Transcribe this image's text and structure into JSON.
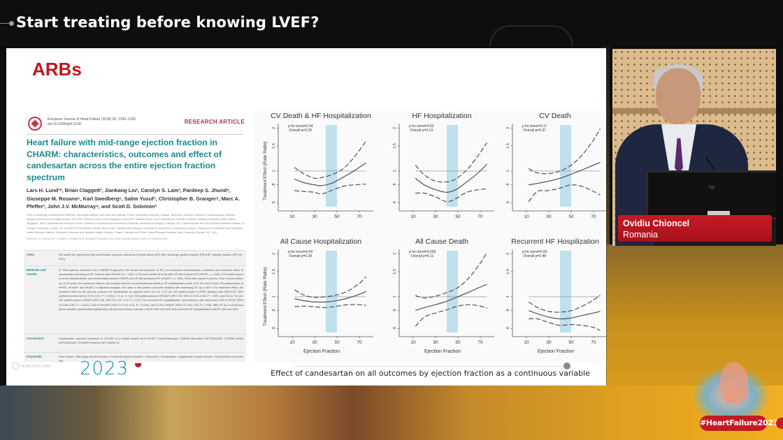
{
  "session": {
    "title": "Start treating before knowing LVEF?"
  },
  "slide": {
    "heading": "ARBs",
    "paper": {
      "journal": "European Journal of Heart Failure (2018) 20, 1230–1239",
      "doi": "doi:10.1002/ejhf.1149",
      "type": "RESEARCH ARTICLE",
      "title": "Heart failure with mid-range ejection fraction in CHARM: characteristics, outcomes and effect of candesartan across the entire ejection fraction spectrum",
      "authors": "Lars H. Lund¹*, Brian Claggett², Jiankang Liu², Carolyn S. Lam³, Pardeep S. Jhund⁴, Giuseppe M. Rosano⁵, Karl Swedberg⁶, Salim Yusuf⁷, Christopher B. Granger⁸, Marc A. Pfeffer², John J.V. McMurray⁴, and Scott D. Solomon²",
      "affiliations": "¹Unit of Cardiology, Department of Medicine, Karolinska Institutet, and Heart and Vascular Theme, Karolinska University Hospital, Stockholm, Sweden; ²Division of Cardiovascular Medicine, Brigham and Women's Hospital, Boston, MA, USA; ³National Heart Centre Singapore, Duke-NUS Medical School, and Cardiovascular Research Institute, National University Health System, Singapore; ⁴BHF Cardiovascular Research Centre, Institute of Cardiovascular and Medical Sciences, University of Glasgow, Glasgow, UK; ⁵Cardiovascular and Cell Sciences Research Institute, St George's University, London, UK, and IRCCS San Raffaele Pisana, Rome, Italy; ⁶Sahlgrenska Academy, University of Gothenburg, Gothenburg, Sweden; ⁷Department of Medicine and Population Health Research Institute, McMaster University and Hamilton Health Sciences, Ontario, Canada; and ⁸Duke Clinical Research Institute, Duke University, Durham, NC, USA",
      "received": "Received 23 October 2017; revised 3 January 2018; accepted 8 January 2018; online publish-ahead-of-print 13 February 2018",
      "abstract": [
        {
          "label": "Aims",
          "text": "We tested the hypothesis that candesartan improves outcomes in heart failure (HF) with mid-range ejection fraction [HFmrEF; ejection fraction (EF) 40–49%]."
        },
        {
          "label": "Methods and results",
          "text": "In 7598 patients enrolled in the CHARM Programme (HF across the spectrum of EF), we assessed characteristics, outcomes and treatment effect of candesartan according to EF. Patients with HFmrEF (n = 1322, 17%) were similar to those with HF with reduced EF (HFrEF; n = 4323, 57%) with respect to some characteristics, and intermediate between HFrEF and HF with preserved EF (HFpEF; n = 1953, 26%) with respect to others. Over a mean follow-up of 2.9 years, the incidence rates for the primary outcome of cardiovascular death or HF hospitalization were 15.9, 8.5 and 8.9 per 100 patient-years in HFrEF, HFmrEF and HFpEF. In adjusted analyses, the rates of the primary outcome declined with increasing EF up to 50%. For treatment effect, the incidence rates for the primary outcome for candesartan vs. placebo were 14.4 vs. 17.2 per 100 patient-years in HFrEF [hazard ratio (HR) 0.82, 95% confidence interval (CI) 0.75–0.91, P < 0.001], 7.4 vs. 9.7 per 100 patient-years in HFmrEF (HR 0.76, 95% CI 0.61–0.96, P = 0.02), and 8.6 vs. 9.1 per 100 patient-years in HFpEF (HR 0.95, 95% CI 0.79–1.14, P = 0.57). For recurrent HF hospitalization, the incidence rate ratios were 0.68 in HFrEF (95% CI 0.58–0.80, P < 0.001), 0.48 in HFmrEF (95% CI 0.33–0.70, P < 0.001), and 0.78 in HFpEF (95% CI 0.59–1.03, P = 0.08). With EF as a continuous spline variable, candesartan significantly reduced the primary outcome until EF well over 50% and recurrent HF hospitalization until EF well over 60%."
        },
        {
          "label": "Conclusion",
          "text": "Candesartan improved outcomes in HFmrEF to a similar degree as in HFrEF. ClinicalTrials.gov: CHARM Alternative NCT00634400, CHARM Added NCT00634309, CHARM Preserved NCT00634712."
        },
        {
          "label": "Keywords",
          "text": "Heart failure • Mid-range ejection fraction • Preserved ejection fraction • Outcomes • Candesartan • Angiotensin receptor blocker • Randomized controlled trial"
        }
      ]
    },
    "footer_logo_text": "HEARTFAILURE",
    "footer_year": "2023",
    "caption": "Effect of candesartan on all outcomes by ejection fraction as a continuous variable"
  },
  "chart_data": [
    {
      "type": "line",
      "title": "CV Death & HF Hospitalization",
      "p_trend": "p for trend=0.34",
      "p_overall": "Overall p=0.15",
      "xlabel": "",
      "ylabel": "Treatment Effect (Rate Ratio)",
      "xticks": [
        10,
        30,
        50,
        70
      ],
      "yticks": [
        0.6,
        0.8,
        1,
        1.5,
        2
      ],
      "ylim": [
        0.55,
        2.1
      ],
      "xlim": [
        0,
        80
      ],
      "shaded_band": [
        40,
        50
      ],
      "reference_line": 1,
      "series": [
        {
          "name": "estimate",
          "style": "solid",
          "x": [
            12,
            20,
            30,
            36,
            45,
            55,
            65,
            76
          ],
          "y": [
            0.88,
            0.83,
            0.8,
            0.79,
            0.82,
            0.9,
            1.0,
            1.14
          ]
        },
        {
          "name": "upper 95% CI",
          "style": "dashed",
          "x": [
            12,
            20,
            30,
            36,
            45,
            55,
            65,
            76
          ],
          "y": [
            1.06,
            0.96,
            0.89,
            0.9,
            0.94,
            1.03,
            1.24,
            1.62
          ]
        },
        {
          "name": "lower 95% CI",
          "style": "dashed",
          "x": [
            12,
            20,
            30,
            36,
            45,
            55,
            65,
            76
          ],
          "y": [
            0.73,
            0.72,
            0.71,
            0.69,
            0.73,
            0.78,
            0.8,
            0.81
          ]
        }
      ]
    },
    {
      "type": "line",
      "title": "HF Hospitalization",
      "p_trend": "p for trend=0.53",
      "p_overall": "Overall p=0.14",
      "xlabel": "",
      "ylabel": "Treatment Effect (Rate Ratio)",
      "xticks": [
        10,
        30,
        50,
        70
      ],
      "yticks": [
        0.6,
        0.8,
        1,
        1.5,
        2
      ],
      "ylim": [
        0.55,
        2.1
      ],
      "xlim": [
        0,
        80
      ],
      "shaded_band": [
        40,
        50
      ],
      "reference_line": 1,
      "series": [
        {
          "name": "estimate",
          "style": "solid",
          "x": [
            12,
            20,
            30,
            40,
            48,
            58,
            68,
            76
          ],
          "y": [
            0.89,
            0.8,
            0.74,
            0.71,
            0.74,
            0.84,
            0.97,
            1.12
          ]
        },
        {
          "name": "upper 95% CI",
          "style": "dashed",
          "x": [
            12,
            20,
            30,
            40,
            48,
            58,
            68,
            76
          ],
          "y": [
            1.1,
            0.94,
            0.85,
            0.84,
            0.88,
            1.02,
            1.28,
            1.58
          ]
        },
        {
          "name": "lower 95% CI",
          "style": "dashed",
          "x": [
            12,
            20,
            30,
            40,
            48,
            58,
            68,
            76
          ],
          "y": [
            0.7,
            0.7,
            0.66,
            0.61,
            0.64,
            0.71,
            0.74,
            0.75
          ]
        }
      ]
    },
    {
      "type": "line",
      "title": "CV Death",
      "p_trend": "p for trend=0.17",
      "p_overall": "Overall p=0.37",
      "xlabel": "",
      "ylabel": "Treatment Effect (Rate Ratio)",
      "xticks": [
        10,
        30,
        50,
        70
      ],
      "yticks": [
        0.6,
        0.8,
        1,
        1.5,
        2
      ],
      "ylim": [
        0.55,
        2.1
      ],
      "xlim": [
        0,
        80
      ],
      "shaded_band": [
        40,
        50
      ],
      "reference_line": 1,
      "series": [
        {
          "name": "estimate",
          "style": "solid",
          "x": [
            12,
            20,
            30,
            40,
            50,
            60,
            70,
            76
          ],
          "y": [
            0.8,
            0.82,
            0.85,
            0.89,
            0.95,
            1.02,
            1.1,
            1.15
          ]
        },
        {
          "name": "upper 95% CI",
          "style": "dashed",
          "x": [
            12,
            20,
            30,
            40,
            50,
            60,
            70,
            76
          ],
          "y": [
            1.04,
            0.97,
            0.96,
            1.0,
            1.1,
            1.3,
            1.65,
            1.98
          ]
        },
        {
          "name": "lower 95% CI",
          "style": "dashed",
          "x": [
            12,
            20,
            30,
            40,
            50,
            60,
            70,
            76
          ],
          "y": [
            0.61,
            0.72,
            0.73,
            0.76,
            0.8,
            0.78,
            0.72,
            0.68
          ]
        }
      ]
    },
    {
      "type": "line",
      "title": "All Cause Hospitalization",
      "p_trend": "p for trend=0.42",
      "p_overall": "Overall p=0.34",
      "xlabel": "Ejection Fraction",
      "ylabel": "Treatment Effect (Rate Ratio)",
      "xticks": [
        10,
        30,
        50,
        70
      ],
      "yticks": [
        0.6,
        0.8,
        1,
        1.5,
        2
      ],
      "ylim": [
        0.55,
        2.1
      ],
      "xlim": [
        0,
        80
      ],
      "shaded_band": [
        40,
        50
      ],
      "reference_line": 1,
      "series": [
        {
          "name": "estimate",
          "style": "solid",
          "x": [
            12,
            20,
            30,
            40,
            50,
            60,
            70,
            76
          ],
          "y": [
            0.97,
            0.94,
            0.92,
            0.92,
            0.94,
            0.98,
            1.04,
            1.09
          ]
        },
        {
          "name": "upper 95% CI",
          "style": "dashed",
          "x": [
            12,
            20,
            30,
            40,
            50,
            60,
            70,
            76
          ],
          "y": [
            1.12,
            1.03,
            0.99,
            1.0,
            1.03,
            1.1,
            1.24,
            1.38
          ]
        },
        {
          "name": "lower 95% CI",
          "style": "dashed",
          "x": [
            12,
            20,
            30,
            40,
            50,
            60,
            70,
            76
          ],
          "y": [
            0.85,
            0.86,
            0.85,
            0.84,
            0.86,
            0.88,
            0.88,
            0.87
          ]
        }
      ]
    },
    {
      "type": "line",
      "title": "All Cause Death",
      "p_trend": "p for trend=0.038",
      "p_overall": "Overall p=0.11",
      "xlabel": "Ejection Fraction",
      "ylabel": "Treatment Effect (Rate Ratio)",
      "xticks": [
        10,
        30,
        50,
        70
      ],
      "yticks": [
        0.6,
        0.8,
        1,
        1.5,
        2
      ],
      "ylim": [
        0.55,
        2.1
      ],
      "xlim": [
        0,
        80
      ],
      "shaded_band": [
        40,
        50
      ],
      "reference_line": 1,
      "series": [
        {
          "name": "estimate",
          "style": "solid",
          "x": [
            12,
            20,
            30,
            40,
            50,
            60,
            70,
            76
          ],
          "y": [
            0.8,
            0.84,
            0.88,
            0.93,
            1.0,
            1.08,
            1.17,
            1.22
          ]
        },
        {
          "name": "upper 95% CI",
          "style": "dashed",
          "x": [
            12,
            20,
            30,
            40,
            50,
            60,
            70,
            76
          ],
          "y": [
            1.02,
            0.98,
            1.01,
            1.07,
            1.16,
            1.36,
            1.72,
            2.05
          ]
        },
        {
          "name": "lower 95% CI",
          "style": "dashed",
          "x": [
            12,
            20,
            30,
            40,
            50,
            60,
            70,
            76
          ],
          "y": [
            0.62,
            0.72,
            0.77,
            0.81,
            0.86,
            0.88,
            0.86,
            0.83
          ]
        }
      ]
    },
    {
      "type": "line",
      "title": "Recurrent HF Hospilization",
      "p_trend": "p for trend=0.50",
      "p_overall": "Overall p=0.48",
      "xlabel": "Ejection Fraction",
      "ylabel": "Treatment Effect (Rate Ratio)",
      "xticks": [
        10,
        30,
        50,
        70
      ],
      "yticks": [
        0.6,
        0.8,
        1,
        1.5,
        2
      ],
      "ylim": [
        0.55,
        2.1
      ],
      "xlim": [
        0,
        80
      ],
      "shaded_band": [
        40,
        50
      ],
      "reference_line": 1,
      "series": [
        {
          "name": "estimate",
          "style": "solid",
          "x": [
            12,
            20,
            30,
            40,
            50,
            60,
            70,
            76
          ],
          "y": [
            0.8,
            0.76,
            0.72,
            0.7,
            0.71,
            0.74,
            0.77,
            0.79
          ]
        },
        {
          "name": "upper 95% CI",
          "style": "dashed",
          "x": [
            12,
            20,
            30,
            40,
            50,
            60,
            70,
            76
          ],
          "y": [
            0.92,
            0.84,
            0.79,
            0.78,
            0.8,
            0.86,
            0.95,
            1.03
          ]
        },
        {
          "name": "lower 95% CI",
          "style": "dashed",
          "x": [
            12,
            20,
            30,
            40,
            50,
            60,
            70,
            76
          ],
          "y": [
            0.7,
            0.7,
            0.66,
            0.63,
            0.64,
            0.63,
            0.61,
            0.58
          ]
        }
      ]
    }
  ],
  "speaker": {
    "name": "Ovidiu Chioncel",
    "country": "Romania"
  },
  "event": {
    "hashtag": "#HeartFailure2023"
  },
  "colors": {
    "accent_red": "#c41a24",
    "heading_red": "#c0161d",
    "paper_teal": "#1a8a8e",
    "band_blue": "#bfe0ec"
  }
}
